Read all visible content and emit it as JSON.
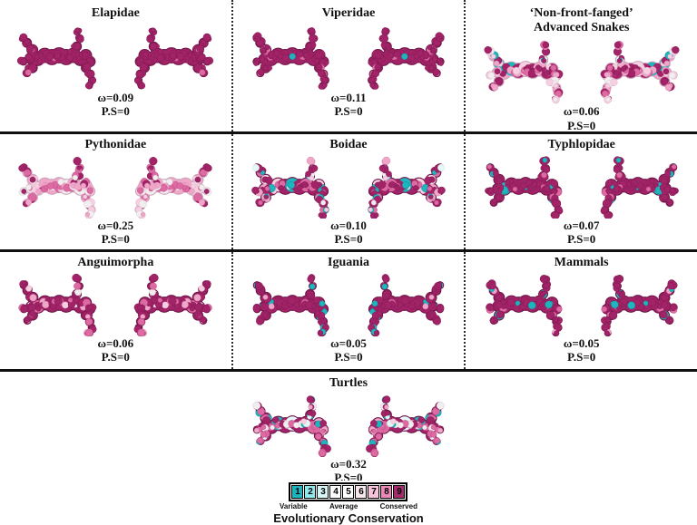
{
  "panels": [
    {
      "id": "elapidae",
      "title": "Elapidae",
      "subtitle": "",
      "omega_label": "ω=0.09",
      "ps_label": "P.S=0",
      "seed": 11,
      "mix": [
        [
          "9",
          0.97
        ],
        [
          "8",
          0.03
        ]
      ]
    },
    {
      "id": "viperidae",
      "title": "Viperidae",
      "subtitle": "",
      "omega_label": "ω=0.11",
      "ps_label": "P.S=0",
      "seed": 23,
      "mix": [
        [
          "9",
          0.94
        ],
        [
          "8",
          0.05
        ],
        [
          "1",
          0.01
        ]
      ]
    },
    {
      "id": "nff-advanced-snakes",
      "title": "‘Non-front-fanged’",
      "subtitle": "Advanced Snakes",
      "omega_label": "ω=0.06",
      "ps_label": "P.S=0",
      "seed": 37,
      "mix": [
        [
          "9",
          0.35
        ],
        [
          "8",
          0.15
        ],
        [
          "7",
          0.18
        ],
        [
          "6",
          0.15
        ],
        [
          "5",
          0.09
        ],
        [
          "4",
          0.03
        ],
        [
          "1",
          0.05
        ]
      ]
    },
    {
      "id": "pythonidae",
      "title": "Pythonidae",
      "subtitle": "",
      "omega_label": "ω=0.25",
      "ps_label": "P.S=0",
      "seed": 41,
      "mix": [
        [
          "9",
          0.22
        ],
        [
          "8",
          0.2
        ],
        [
          "7",
          0.22
        ],
        [
          "6",
          0.18
        ],
        [
          "5",
          0.18
        ]
      ]
    },
    {
      "id": "boidae",
      "title": "Boidae",
      "subtitle": "",
      "omega_label": "ω=0.10",
      "ps_label": "P.S=0",
      "seed": 53,
      "mix": [
        [
          "9",
          0.45
        ],
        [
          "8",
          0.18
        ],
        [
          "7",
          0.14
        ],
        [
          "6",
          0.06
        ],
        [
          "5",
          0.07
        ],
        [
          "4",
          0.02
        ],
        [
          "1",
          0.08
        ]
      ]
    },
    {
      "id": "typhlopidae",
      "title": "Typhlopidae",
      "subtitle": "",
      "omega_label": "ω=0.07",
      "ps_label": "P.S=0",
      "seed": 67,
      "mix": [
        [
          "9",
          0.85
        ],
        [
          "8",
          0.07
        ],
        [
          "1",
          0.08
        ]
      ]
    },
    {
      "id": "anguimorpha",
      "title": "Anguimorpha",
      "subtitle": "",
      "omega_label": "ω=0.06",
      "ps_label": "P.S=0",
      "seed": 71,
      "mix": [
        [
          "9",
          0.74
        ],
        [
          "8",
          0.08
        ],
        [
          "7",
          0.07
        ],
        [
          "6",
          0.04
        ],
        [
          "5",
          0.03
        ],
        [
          "1",
          0.04
        ]
      ]
    },
    {
      "id": "iguania",
      "title": "Iguania",
      "subtitle": "",
      "omega_label": "ω=0.05",
      "ps_label": "P.S=0",
      "seed": 83,
      "mix": [
        [
          "9",
          0.82
        ],
        [
          "8",
          0.04
        ],
        [
          "7",
          0.04
        ],
        [
          "1",
          0.1
        ]
      ]
    },
    {
      "id": "mammals",
      "title": "Mammals",
      "subtitle": "",
      "omega_label": "ω=0.05",
      "ps_label": "P.S=0",
      "seed": 97,
      "mix": [
        [
          "9",
          0.85
        ],
        [
          "8",
          0.05
        ],
        [
          "7",
          0.02
        ],
        [
          "1",
          0.08
        ]
      ]
    },
    {
      "id": "turtles",
      "title": "Turtles",
      "subtitle": "",
      "omega_label": "ω=0.32",
      "ps_label": "P.S=0",
      "seed": 103,
      "mix": [
        [
          "9",
          0.42
        ],
        [
          "8",
          0.2
        ],
        [
          "7",
          0.12
        ],
        [
          "6",
          0.06
        ],
        [
          "5",
          0.08
        ],
        [
          "4",
          0.02
        ],
        [
          "1",
          0.1
        ]
      ]
    }
  ],
  "legend": {
    "scale": [
      {
        "value": "1",
        "color": "#1CB3BC"
      },
      {
        "value": "2",
        "color": "#8FE8EA"
      },
      {
        "value": "3",
        "color": "#D5F6F4"
      },
      {
        "value": "4",
        "color": "#FDFFFF"
      },
      {
        "value": "5",
        "color": "#FFFFFF"
      },
      {
        "value": "6",
        "color": "#F8E6EE"
      },
      {
        "value": "7",
        "color": "#F5C3DA"
      },
      {
        "value": "8",
        "color": "#E989B6"
      },
      {
        "value": "9",
        "color": "#A52C6B"
      }
    ],
    "labels": [
      "Variable",
      "Average",
      "Conserved"
    ],
    "title": "Evolutionary Conservation"
  },
  "surface_palette": {
    "9": {
      "fill": "#A32368",
      "shade": "#7E1A50"
    },
    "8": {
      "fill": "#DE6AA3",
      "shade": "#BE4C85"
    },
    "7": {
      "fill": "#F0A6C8",
      "shade": "#D587AE"
    },
    "6": {
      "fill": "#F6CFE0",
      "shade": "#DFAFC8"
    },
    "5": {
      "fill": "#F2EEF0",
      "shade": "#D5CCD2"
    },
    "4": {
      "fill": "#E6F7F7",
      "shade": "#C6E3E3"
    },
    "3": {
      "fill": "#C8F2F2",
      "shade": "#A6DCDC"
    },
    "1": {
      "fill": "#1FB5BE",
      "shade": "#128A92"
    }
  }
}
